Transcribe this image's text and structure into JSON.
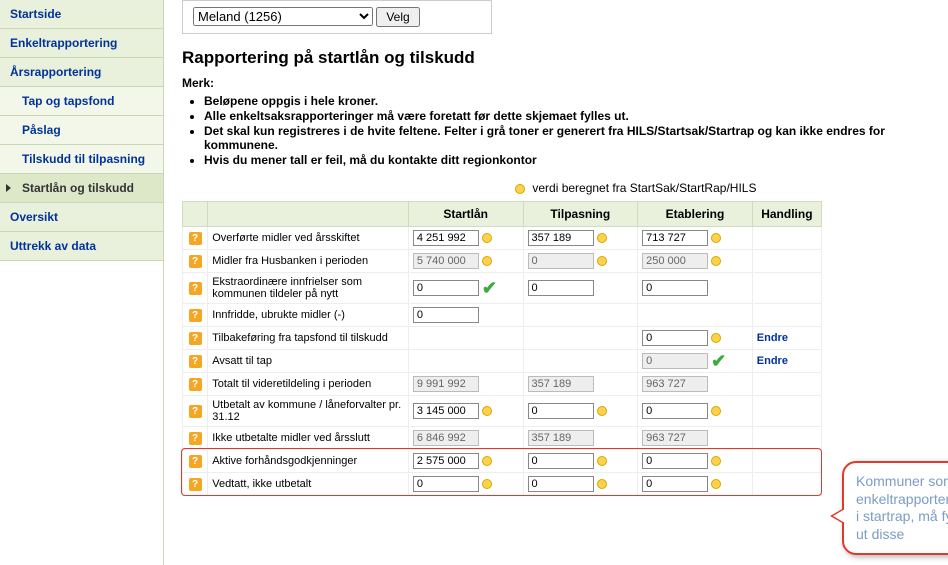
{
  "sidebar": {
    "items": [
      {
        "label": "Startside",
        "sub": false,
        "active": false
      },
      {
        "label": "Enkeltrapportering",
        "sub": false,
        "active": false
      },
      {
        "label": "Årsrapportering",
        "sub": false,
        "active": false
      },
      {
        "label": "Tap og tapsfond",
        "sub": true,
        "active": false
      },
      {
        "label": "Påslag",
        "sub": true,
        "active": false
      },
      {
        "label": "Tilskudd til tilpasning",
        "sub": true,
        "active": false
      },
      {
        "label": "Startlån og tilskudd",
        "sub": true,
        "active": true
      },
      {
        "label": "Oversikt",
        "sub": false,
        "active": false
      },
      {
        "label": "Uttrekk av data",
        "sub": false,
        "active": false
      }
    ]
  },
  "selector": {
    "value": "Meland (1256)",
    "button": "Velg"
  },
  "title": "Rapportering på startlån og tilskudd",
  "merk_label": "Merk:",
  "merk": [
    "Beløpene oppgis i hele kroner.",
    "Alle enkeltsaksrapporteringer må være foretatt før dette skjemaet fylles ut.",
    "Det skal kun registreres i de hvite feltene. Felter i grå toner er generert fra HILS/Startsak/Startrap og kan ikke endres for kommunene.",
    "Hvis du mener tall er feil, må du kontakte ditt regionkontor"
  ],
  "legend": "verdi beregnet fra StartSak/StartRap/HILS",
  "headers": {
    "c1": "Startlån",
    "c2": "Tilpasning",
    "c3": "Etablering",
    "c4": "Handling"
  },
  "rows": [
    {
      "label": "Overførte midler ved årsskiftet",
      "c1": {
        "v": "4 251 992",
        "ro": false,
        "mark": "dot"
      },
      "c2": {
        "v": "357 189",
        "ro": false,
        "mark": "dot"
      },
      "c3": {
        "v": "713 727",
        "ro": false,
        "mark": "dot"
      },
      "action": ""
    },
    {
      "label": "Midler fra Husbanken i perioden",
      "c1": {
        "v": "5 740 000",
        "ro": true,
        "mark": "dot"
      },
      "c2": {
        "v": "0",
        "ro": true,
        "mark": "dot"
      },
      "c3": {
        "v": "250 000",
        "ro": true,
        "mark": "dot"
      },
      "action": ""
    },
    {
      "label": "Ekstraordinære innfrielser som kommunen tildeler på nytt",
      "c1": {
        "v": "0",
        "ro": false,
        "mark": "check"
      },
      "c2": {
        "v": "0",
        "ro": false,
        "mark": ""
      },
      "c3": {
        "v": "0",
        "ro": false,
        "mark": ""
      },
      "action": ""
    },
    {
      "label": "Innfridde, ubrukte midler (-)",
      "c1": {
        "v": "0",
        "ro": false,
        "mark": ""
      },
      "c2": null,
      "c3": null,
      "action": ""
    },
    {
      "label": "Tilbakeføring fra tapsfond til tilskudd",
      "c1": null,
      "c2": null,
      "c3": {
        "v": "0",
        "ro": false,
        "mark": "dot"
      },
      "action": "Endre"
    },
    {
      "label": "Avsatt til tap",
      "c1": null,
      "c2": null,
      "c3": {
        "v": "0",
        "ro": true,
        "mark": "check"
      },
      "action": "Endre"
    },
    {
      "label": "Totalt til videretildeling i perioden",
      "c1": {
        "v": "9 991 992",
        "ro": true,
        "mark": ""
      },
      "c2": {
        "v": "357 189",
        "ro": true,
        "mark": ""
      },
      "c3": {
        "v": "963 727",
        "ro": true,
        "mark": ""
      },
      "action": ""
    },
    {
      "label": "Utbetalt av kommune / låneforvalter pr. 31.12",
      "c1": {
        "v": "3 145 000",
        "ro": false,
        "mark": "dot"
      },
      "c2": {
        "v": "0",
        "ro": false,
        "mark": "dot"
      },
      "c3": {
        "v": "0",
        "ro": false,
        "mark": "dot"
      },
      "action": ""
    },
    {
      "label": "Ikke utbetalte midler ved årsslutt",
      "c1": {
        "v": "6 846 992",
        "ro": true,
        "mark": ""
      },
      "c2": {
        "v": "357 189",
        "ro": true,
        "mark": ""
      },
      "c3": {
        "v": "963 727",
        "ro": true,
        "mark": ""
      },
      "action": ""
    },
    {
      "label": "Aktive forhåndsgodkjenninger",
      "c1": {
        "v": "2 575 000",
        "ro": false,
        "mark": "dot"
      },
      "c2": {
        "v": "0",
        "ro": false,
        "mark": "dot"
      },
      "c3": {
        "v": "0",
        "ro": false,
        "mark": "dot"
      },
      "action": ""
    },
    {
      "label": "Vedtatt, ikke utbetalt",
      "c1": {
        "v": "0",
        "ro": false,
        "mark": "dot"
      },
      "c2": {
        "v": "0",
        "ro": false,
        "mark": "dot"
      },
      "c3": {
        "v": "0",
        "ro": false,
        "mark": "dot"
      },
      "action": ""
    }
  ],
  "callout": "Kommuner som enkeltrapporter er i startrap, må fylle ut disse",
  "colors": {
    "sidebar_bg": "#e9f0dc",
    "sidebar_active": "#dde8c9",
    "link": "#003399",
    "header_bg": "#e9f0dc",
    "help_icon": "#f5a623",
    "check": "#3caa3c",
    "highlight_border": "#e23a2a",
    "callout_text": "#7a9cc6"
  }
}
